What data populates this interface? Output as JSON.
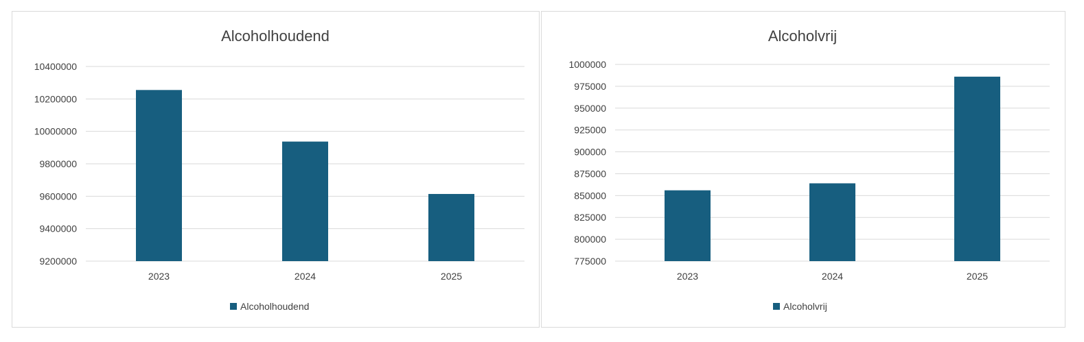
{
  "chart_data": [
    {
      "type": "bar",
      "title": "Alcoholhoudend",
      "categories": [
        "2023",
        "2024",
        "2025"
      ],
      "series": [
        {
          "name": "Alcoholhoudend",
          "values": [
            10255000,
            9937000,
            9614000
          ],
          "color": "#175e7f"
        }
      ],
      "ylim": [
        9200000,
        10400000
      ],
      "yticks": [
        9200000,
        9400000,
        9600000,
        9800000,
        10000000,
        10200000,
        10400000
      ],
      "grid": true,
      "legend": "bottom"
    },
    {
      "type": "bar",
      "title": "Alcoholvrij",
      "categories": [
        "2023",
        "2024",
        "2025"
      ],
      "series": [
        {
          "name": "Alcoholvrij",
          "values": [
            856000,
            864000,
            986000
          ],
          "color": "#175e7f"
        }
      ],
      "ylim": [
        775000,
        1000000
      ],
      "yticks": [
        775000,
        800000,
        825000,
        850000,
        875000,
        900000,
        925000,
        950000,
        975000,
        1000000
      ],
      "grid": true,
      "legend": "bottom"
    }
  ]
}
